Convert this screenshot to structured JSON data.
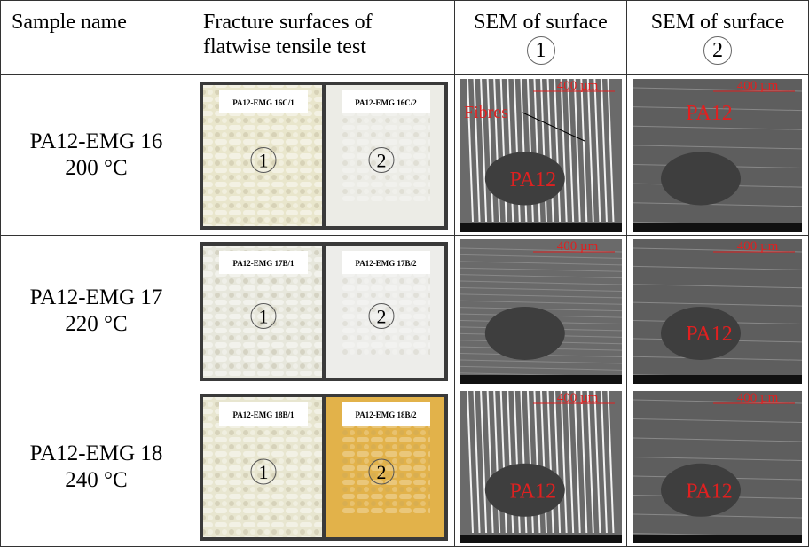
{
  "table": {
    "header": [
      {
        "lines": [
          "Sample name"
        ]
      },
      {
        "lines": [
          "Fracture surfaces of",
          "flatwise tensile test"
        ]
      },
      {
        "lines": [
          "SEM of surface"
        ],
        "circled": "1"
      },
      {
        "lines": [
          "SEM of surface"
        ],
        "circled": "2"
      }
    ],
    "rows": [
      {
        "sample": [
          "PA12-EMG 16",
          "200 °C"
        ],
        "photo": {
          "labels": [
            "PA12-EMG 16C/1",
            "PA12-EMG 16C/2"
          ],
          "markers": [
            "1",
            "2"
          ]
        },
        "sem1": {
          "scale": "400 µm",
          "annotations": [
            "Fibres",
            "PA12"
          ]
        },
        "sem2": {
          "scale": "400 µm",
          "annotations": [
            "PA12"
          ]
        }
      },
      {
        "sample": [
          "PA12-EMG 17",
          "220 °C"
        ],
        "photo": {
          "labels": [
            "PA12-EMG 17B/1",
            "PA12-EMG 17B/2"
          ],
          "markers": [
            "1",
            "2"
          ]
        },
        "sem1": {
          "scale": "400 µm",
          "annotations": []
        },
        "sem2": {
          "scale": "400 µm",
          "annotations": [
            "PA12"
          ]
        }
      },
      {
        "sample": [
          "PA12-EMG 18",
          "240 °C"
        ],
        "photo": {
          "labels": [
            "PA12-EMG 18B/1",
            "PA12-EMG 18B/2"
          ],
          "markers": [
            "1",
            "2"
          ]
        },
        "sem1": {
          "scale": "400 µm",
          "annotations": [
            "PA12"
          ]
        },
        "sem2": {
          "scale": "400 µm",
          "annotations": [
            "PA12"
          ]
        }
      }
    ]
  }
}
